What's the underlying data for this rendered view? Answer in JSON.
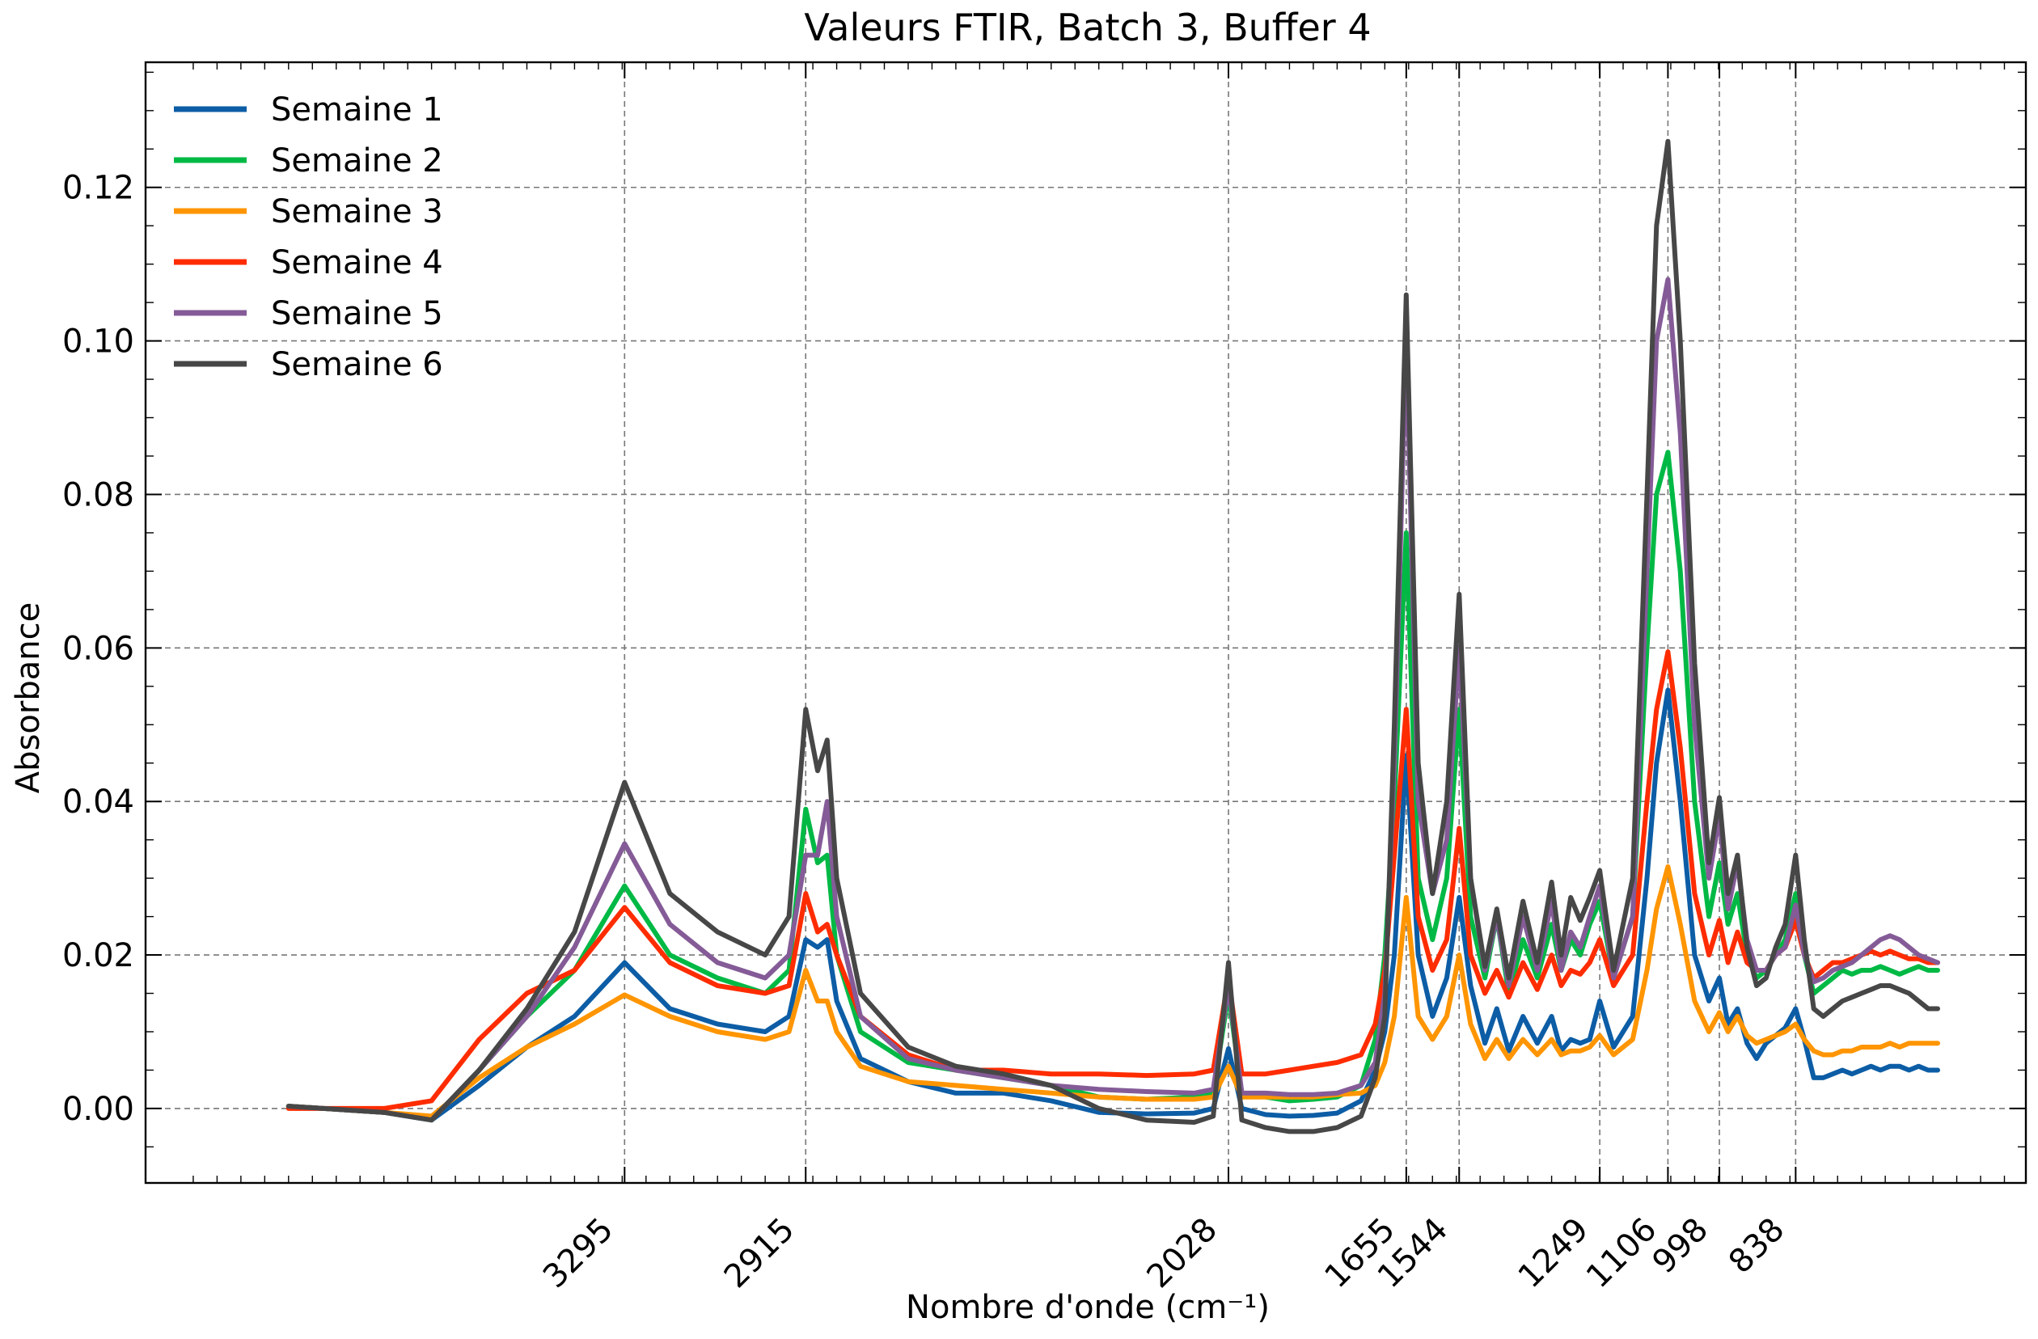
{
  "chart_data": {
    "type": "line",
    "title": "Valeurs FTIR, Batch 3, Buffer 4",
    "xlabel": "Nombre d'onde (cm⁻¹)",
    "ylabel": "Absorbance",
    "x_reversed": true,
    "xlim": [
      4300,
      355
    ],
    "ylim": [
      -0.0097,
      0.1363
    ],
    "x_ticks": [
      3295,
      2915,
      2028,
      1655,
      1544,
      1249,
      1106,
      998,
      838
    ],
    "y_ticks": [
      0.0,
      0.02,
      0.04,
      0.06,
      0.08,
      0.1,
      0.12
    ],
    "y_tick_labels": [
      "0.00",
      "0.02",
      "0.04",
      "0.06",
      "0.08",
      "0.10",
      "0.12"
    ],
    "grid": true,
    "legend_position": "top-left",
    "x": [
      4000,
      3800,
      3700,
      3600,
      3500,
      3400,
      3295,
      3200,
      3100,
      3000,
      2950,
      2915,
      2890,
      2870,
      2850,
      2800,
      2700,
      2600,
      2500,
      2400,
      2300,
      2200,
      2100,
      2060,
      2028,
      2000,
      1950,
      1900,
      1850,
      1800,
      1750,
      1720,
      1700,
      1680,
      1655,
      1630,
      1600,
      1570,
      1544,
      1520,
      1490,
      1465,
      1440,
      1410,
      1380,
      1350,
      1330,
      1310,
      1290,
      1270,
      1249,
      1220,
      1180,
      1150,
      1130,
      1106,
      1080,
      1050,
      1020,
      998,
      980,
      960,
      940,
      920,
      900,
      880,
      860,
      838,
      820,
      800,
      780,
      760,
      740,
      720,
      700,
      680,
      660,
      640,
      620,
      600,
      580,
      560,
      540
    ],
    "series": [
      {
        "name": "Semaine 1",
        "color": "#0c5da5",
        "values": [
          0.0003,
          -0.0005,
          -0.0015,
          0.003,
          0.008,
          0.012,
          0.019,
          0.013,
          0.011,
          0.01,
          0.012,
          0.022,
          0.021,
          0.022,
          0.014,
          0.0065,
          0.0035,
          0.002,
          0.002,
          0.001,
          -0.0005,
          -0.0007,
          -0.0006,
          0.0,
          0.0078,
          0.0,
          -0.0008,
          -0.001,
          -0.0009,
          -0.0006,
          0.001,
          0.005,
          0.01,
          0.02,
          0.046,
          0.02,
          0.012,
          0.017,
          0.0275,
          0.016,
          0.0085,
          0.013,
          0.0075,
          0.012,
          0.0085,
          0.012,
          0.0075,
          0.009,
          0.0085,
          0.009,
          0.014,
          0.008,
          0.012,
          0.03,
          0.045,
          0.0545,
          0.04,
          0.02,
          0.014,
          0.017,
          0.011,
          0.013,
          0.0085,
          0.0065,
          0.0085,
          0.0095,
          0.0105,
          0.013,
          0.009,
          0.004,
          0.004,
          0.0045,
          0.005,
          0.0045,
          0.005,
          0.0055,
          0.005,
          0.0055,
          0.0055,
          0.005,
          0.0055,
          0.005,
          0.005
        ]
      },
      {
        "name": "Semaine 2",
        "color": "#00b945",
        "values": [
          0.0003,
          -0.0005,
          -0.0015,
          0.005,
          0.012,
          0.018,
          0.029,
          0.02,
          0.017,
          0.015,
          0.018,
          0.039,
          0.032,
          0.033,
          0.02,
          0.01,
          0.006,
          0.005,
          0.004,
          0.003,
          0.0015,
          0.0012,
          0.0015,
          0.002,
          0.015,
          0.002,
          0.0015,
          0.001,
          0.0012,
          0.0015,
          0.003,
          0.009,
          0.02,
          0.04,
          0.075,
          0.03,
          0.022,
          0.03,
          0.052,
          0.025,
          0.017,
          0.025,
          0.015,
          0.022,
          0.017,
          0.024,
          0.018,
          0.022,
          0.02,
          0.024,
          0.027,
          0.017,
          0.025,
          0.06,
          0.08,
          0.0855,
          0.07,
          0.04,
          0.025,
          0.032,
          0.024,
          0.028,
          0.02,
          0.017,
          0.018,
          0.02,
          0.022,
          0.028,
          0.02,
          0.015,
          0.016,
          0.017,
          0.018,
          0.0175,
          0.018,
          0.018,
          0.0185,
          0.018,
          0.0175,
          0.018,
          0.0185,
          0.018,
          0.018
        ]
      },
      {
        "name": "Semaine 3",
        "color": "#ff9500",
        "values": [
          0.0003,
          -0.0005,
          -0.001,
          0.004,
          0.008,
          0.011,
          0.0148,
          0.012,
          0.01,
          0.009,
          0.01,
          0.018,
          0.014,
          0.014,
          0.01,
          0.0055,
          0.0035,
          0.003,
          0.0025,
          0.002,
          0.0015,
          0.0012,
          0.0012,
          0.0015,
          0.0055,
          0.0015,
          0.0015,
          0.0015,
          0.0015,
          0.0018,
          0.002,
          0.003,
          0.006,
          0.012,
          0.0275,
          0.012,
          0.009,
          0.012,
          0.02,
          0.011,
          0.0065,
          0.009,
          0.0065,
          0.009,
          0.007,
          0.009,
          0.007,
          0.0075,
          0.0075,
          0.008,
          0.0095,
          0.007,
          0.009,
          0.018,
          0.026,
          0.0315,
          0.024,
          0.014,
          0.01,
          0.0125,
          0.01,
          0.012,
          0.0095,
          0.0085,
          0.009,
          0.0095,
          0.01,
          0.011,
          0.009,
          0.0075,
          0.007,
          0.007,
          0.0075,
          0.0075,
          0.008,
          0.008,
          0.008,
          0.0085,
          0.008,
          0.0085,
          0.0085,
          0.0085,
          0.0085
        ]
      },
      {
        "name": "Semaine 4",
        "color": "#ff2c00",
        "values": [
          0.0,
          0.0,
          0.001,
          0.009,
          0.015,
          0.018,
          0.0262,
          0.019,
          0.016,
          0.015,
          0.016,
          0.028,
          0.023,
          0.024,
          0.02,
          0.012,
          0.007,
          0.005,
          0.005,
          0.0045,
          0.0045,
          0.0043,
          0.0045,
          0.005,
          0.017,
          0.0045,
          0.0045,
          0.005,
          0.0055,
          0.006,
          0.007,
          0.011,
          0.018,
          0.033,
          0.052,
          0.025,
          0.018,
          0.022,
          0.0365,
          0.02,
          0.015,
          0.018,
          0.0145,
          0.019,
          0.0155,
          0.02,
          0.016,
          0.018,
          0.0175,
          0.019,
          0.022,
          0.016,
          0.02,
          0.04,
          0.052,
          0.0595,
          0.047,
          0.028,
          0.02,
          0.0245,
          0.019,
          0.023,
          0.019,
          0.018,
          0.018,
          0.02,
          0.021,
          0.0245,
          0.02,
          0.017,
          0.018,
          0.019,
          0.019,
          0.0195,
          0.02,
          0.0205,
          0.02,
          0.0205,
          0.02,
          0.0195,
          0.0195,
          0.019,
          0.019
        ]
      },
      {
        "name": "Semaine 5",
        "color": "#845b97",
        "values": [
          0.0003,
          -0.0005,
          -0.0015,
          0.005,
          0.012,
          0.021,
          0.0345,
          0.024,
          0.019,
          0.017,
          0.02,
          0.033,
          0.033,
          0.04,
          0.025,
          0.012,
          0.0065,
          0.005,
          0.004,
          0.003,
          0.0025,
          0.0022,
          0.002,
          0.0025,
          0.016,
          0.002,
          0.002,
          0.0018,
          0.0018,
          0.002,
          0.003,
          0.006,
          0.015,
          0.045,
          0.1,
          0.04,
          0.028,
          0.035,
          0.06,
          0.03,
          0.018,
          0.025,
          0.016,
          0.025,
          0.018,
          0.027,
          0.018,
          0.023,
          0.021,
          0.025,
          0.029,
          0.017,
          0.025,
          0.07,
          0.1,
          0.108,
          0.088,
          0.05,
          0.03,
          0.038,
          0.026,
          0.032,
          0.022,
          0.018,
          0.018,
          0.02,
          0.021,
          0.0265,
          0.02,
          0.0165,
          0.017,
          0.018,
          0.0185,
          0.019,
          0.02,
          0.021,
          0.022,
          0.0225,
          0.022,
          0.021,
          0.02,
          0.0195,
          0.019
        ]
      },
      {
        "name": "Semaine 6",
        "color": "#474747",
        "values": [
          0.0003,
          -0.0005,
          -0.0015,
          0.005,
          0.013,
          0.023,
          0.0425,
          0.028,
          0.023,
          0.02,
          0.025,
          0.052,
          0.044,
          0.048,
          0.03,
          0.015,
          0.008,
          0.0055,
          0.0045,
          0.003,
          0.0,
          -0.0015,
          -0.0018,
          -0.001,
          0.019,
          -0.0015,
          -0.0025,
          -0.003,
          -0.003,
          -0.0025,
          -0.001,
          0.004,
          0.012,
          0.05,
          0.106,
          0.045,
          0.028,
          0.04,
          0.067,
          0.03,
          0.0185,
          0.026,
          0.017,
          0.027,
          0.019,
          0.0295,
          0.02,
          0.0275,
          0.0245,
          0.0275,
          0.031,
          0.018,
          0.03,
          0.08,
          0.115,
          0.126,
          0.1,
          0.058,
          0.032,
          0.0405,
          0.028,
          0.033,
          0.021,
          0.016,
          0.017,
          0.021,
          0.024,
          0.033,
          0.022,
          0.013,
          0.012,
          0.013,
          0.014,
          0.0145,
          0.015,
          0.0155,
          0.016,
          0.016,
          0.0155,
          0.015,
          0.014,
          0.013,
          0.013
        ]
      }
    ]
  }
}
